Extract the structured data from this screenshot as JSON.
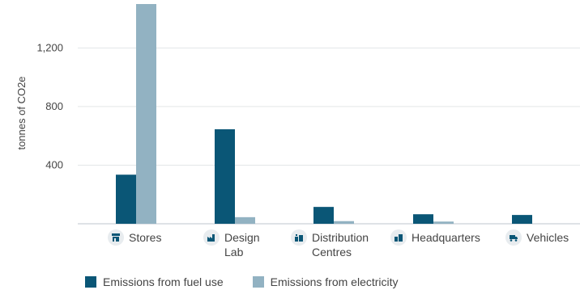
{
  "chart_data": {
    "type": "bar",
    "categories": [
      "Stores",
      "Design Lab",
      "Distribution Centres",
      "Headquarters",
      "Vehicles"
    ],
    "series": [
      {
        "name": "Emissions from fuel use",
        "color": "#0a5676",
        "values": [
          335,
          645,
          115,
          65,
          60
        ]
      },
      {
        "name": "Emissions from electricity",
        "color": "#92b2c2",
        "values": [
          1500,
          45,
          18,
          15,
          0
        ]
      }
    ],
    "ylabel": "tonnes of CO2e",
    "yticks": [
      "400",
      "800",
      "1,200"
    ],
    "ylim": [
      0,
      1500
    ],
    "grid": true,
    "legend_position": "bottom-left"
  },
  "category_icons": [
    "store-icon",
    "factory-icon",
    "warehouse-icon",
    "building-icon",
    "truck-icon"
  ]
}
